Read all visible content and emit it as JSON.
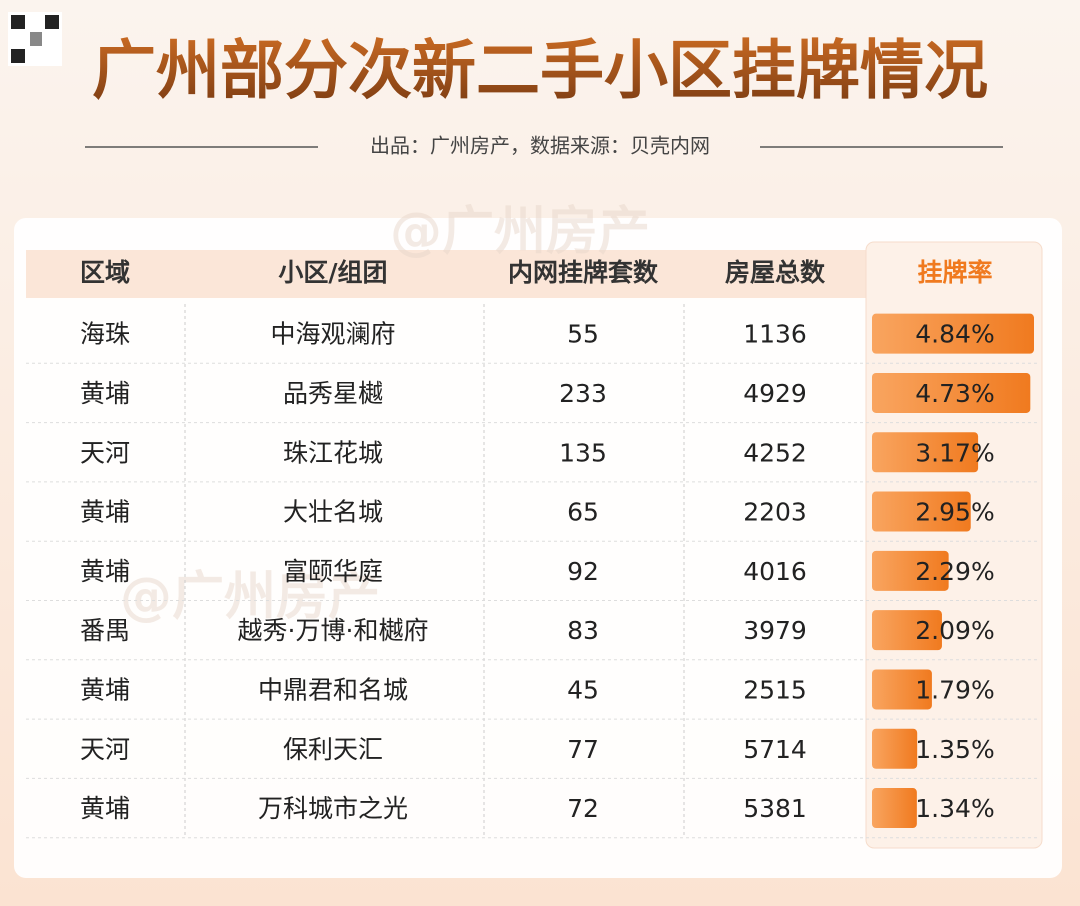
{
  "header": {
    "title": "广州部分次新二手小区挂牌情况",
    "subtitle": "出品：广州房产，数据来源：贝壳内网",
    "watermark": "@广州房产"
  },
  "table": {
    "columns": [
      "区域",
      "小区/组团",
      "内网挂牌套数",
      "房屋总数",
      "挂牌率"
    ],
    "rows": [
      [
        "海珠",
        "中海观澜府",
        55,
        1136
      ],
      [
        "黄埔",
        "品秀星樾",
        233,
        4929
      ],
      [
        "天河",
        "珠江花城",
        135,
        4252
      ],
      [
        "黄埔",
        "大壮名城",
        65,
        2203
      ],
      [
        "黄埔",
        "富颐华庭",
        92,
        4016
      ],
      [
        "番禺",
        "越秀·万博·和樾府",
        83,
        3979
      ],
      [
        "黄埔",
        "中鼎君和名城",
        45,
        2515
      ],
      [
        "天河",
        "保利天汇",
        77,
        5714
      ],
      [
        "黄埔",
        "万科城市之光",
        72,
        5381
      ]
    ],
    "rates": [
      4.84,
      4.73,
      3.17,
      2.95,
      2.29,
      2.09,
      1.79,
      1.35,
      1.34
    ],
    "rate_labels": [
      "4.84%",
      "4.73%",
      "3.17%",
      "2.95%",
      "2.29%",
      "2.09%",
      "1.79%",
      "1.35%",
      "1.34%"
    ]
  }
}
